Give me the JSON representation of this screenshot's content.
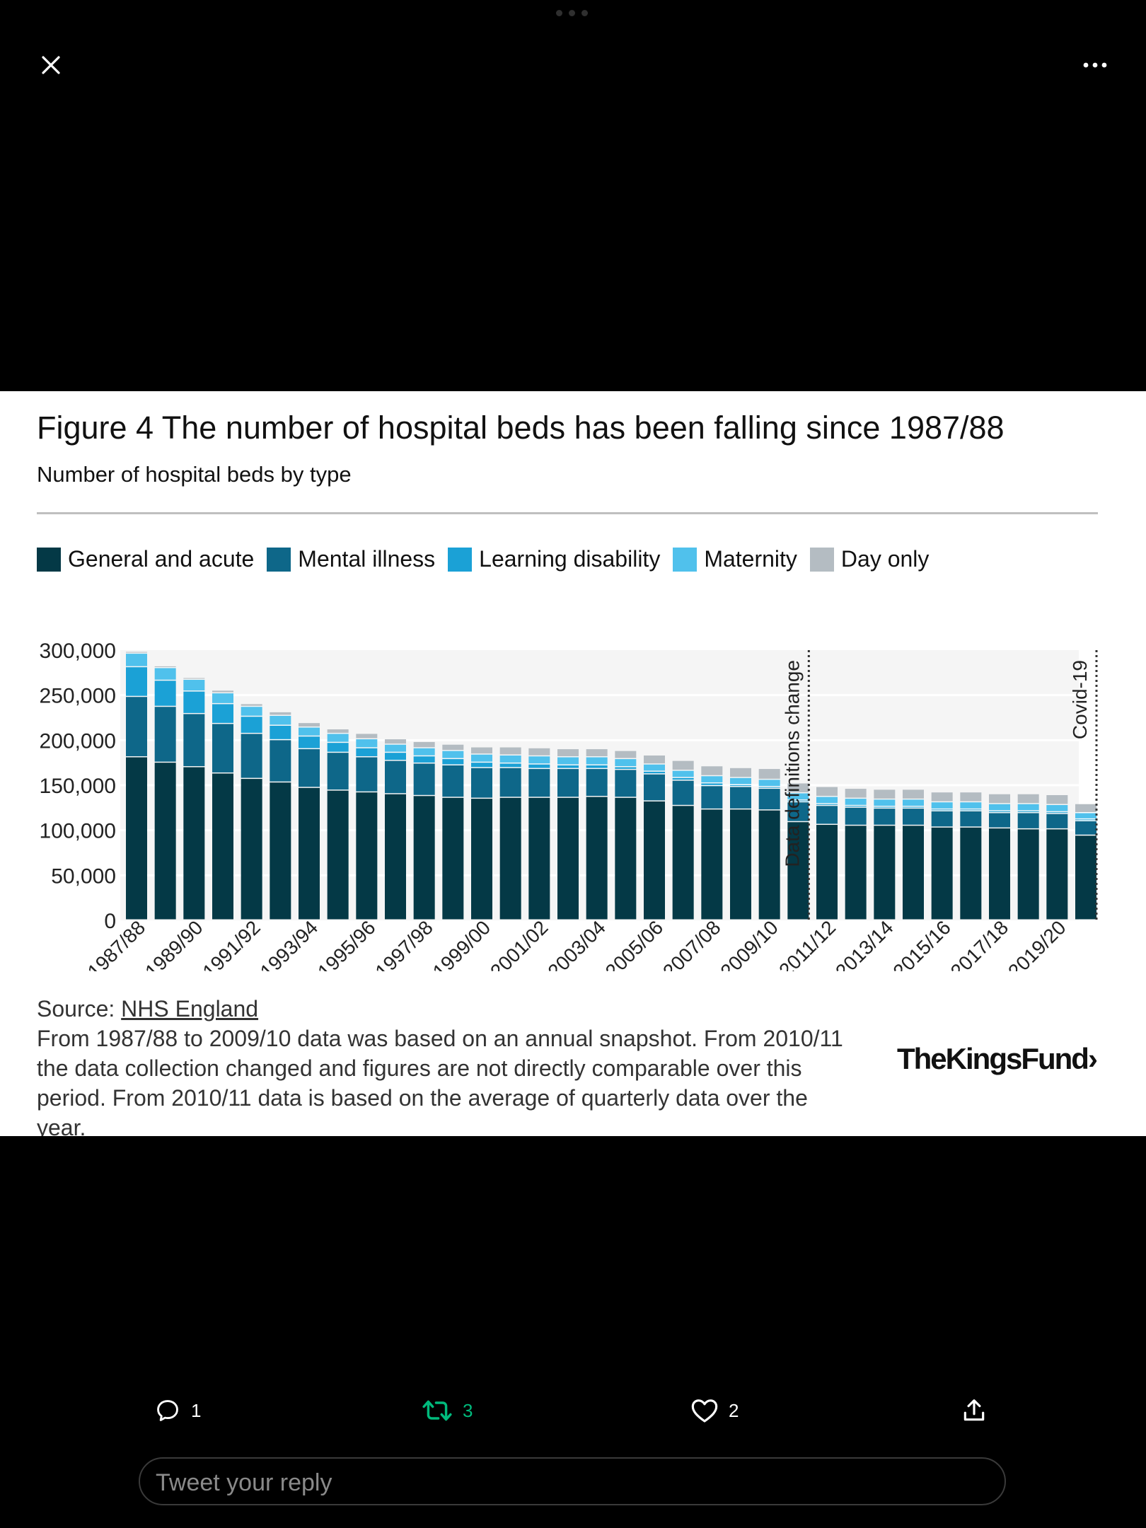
{
  "viewer": {
    "close_icon": "close-icon",
    "more_icon": "more-horizontal-icon"
  },
  "figure": {
    "title": "Figure 4 The number of hospital beds has been falling since 1987/88",
    "subtitle": "Number of hospital beds by type",
    "source_prefix": "Source: ",
    "source_link": "NHS England",
    "note": "From 1987/88 to 2009/10 data was based on an annual snapshot. From 2010/11 the data collection changed and figures are not directly comparable over this period. From 2010/11 data is based on the average of quarterly data over the year.",
    "logo": "TheKingsFund›"
  },
  "chart_data": {
    "type": "bar",
    "stacked": true,
    "categories": [
      "1987/88",
      "1988/89",
      "1989/90",
      "1990/91",
      "1991/92",
      "1992/93",
      "1993/94",
      "1994/95",
      "1995/96",
      "1996/97",
      "1997/98",
      "1998/99",
      "1999/00",
      "2000/01",
      "2001/02",
      "2002/03",
      "2003/04",
      "2004/05",
      "2005/06",
      "2006/07",
      "2007/08",
      "2008/09",
      "2009/10",
      "2010/11",
      "2011/12",
      "2012/13",
      "2013/14",
      "2014/15",
      "2015/16",
      "2016/17",
      "2017/18",
      "2018/19",
      "2019/20",
      "2020/21"
    ],
    "tick_labels": [
      "1987/88",
      "1989/90",
      "1991/92",
      "1993/94",
      "1995/96",
      "1997/98",
      "1999/00",
      "2001/02",
      "2003/04",
      "2005/06",
      "2007/08",
      "2009/10",
      "2011/12",
      "2013/14",
      "2015/16",
      "2017/18",
      "2019/20"
    ],
    "yticks": [
      "300,000",
      "250,000",
      "200,000",
      "150,000",
      "100,000",
      "50,000",
      "0"
    ],
    "ylim": [
      0,
      300000
    ],
    "grid": true,
    "legend_position": "top",
    "series": [
      {
        "name": "General and acute",
        "color": "#043946",
        "values": [
          181000,
          175000,
          170000,
          163000,
          157000,
          153000,
          147000,
          144000,
          142000,
          140000,
          138000,
          136000,
          135000,
          136000,
          136000,
          136000,
          137000,
          136000,
          132000,
          127000,
          123000,
          123000,
          122000,
          109000,
          106000,
          105000,
          105000,
          105000,
          103000,
          103000,
          102000,
          101000,
          101000,
          94000
        ]
      },
      {
        "name": "Mental illness",
        "color": "#0e6789",
        "values": [
          67000,
          62000,
          59000,
          55000,
          50000,
          47000,
          43000,
          42000,
          39000,
          37000,
          36000,
          36000,
          34000,
          33000,
          32000,
          32000,
          31000,
          31000,
          30000,
          28000,
          26000,
          25000,
          24000,
          22000,
          21000,
          20000,
          19000,
          19000,
          18000,
          18000,
          17000,
          18000,
          17000,
          16000
        ]
      },
      {
        "name": "Learning disability",
        "color": "#1ba1d6",
        "values": [
          33000,
          29000,
          25000,
          22000,
          19000,
          16000,
          14000,
          11000,
          10000,
          9000,
          8000,
          7000,
          6000,
          5000,
          5000,
          4000,
          4000,
          3000,
          3000,
          3000,
          3000,
          2000,
          2000,
          2000,
          2000,
          2000,
          2000,
          2000,
          2000,
          2000,
          2000,
          2000,
          2000,
          2000
        ]
      },
      {
        "name": "Maternity",
        "color": "#50c1ec",
        "values": [
          15000,
          14000,
          13000,
          12000,
          11000,
          11000,
          10000,
          10000,
          10000,
          9000,
          9000,
          9000,
          9000,
          9000,
          9000,
          9000,
          9000,
          9000,
          8000,
          8000,
          8000,
          8000,
          8000,
          8000,
          8000,
          8000,
          8000,
          8000,
          8000,
          8000,
          8000,
          8000,
          8000,
          7000
        ]
      },
      {
        "name": "Day only",
        "color": "#b4bcc2",
        "values": [
          2000,
          2000,
          2000,
          3000,
          3000,
          4000,
          5000,
          5000,
          6000,
          6000,
          7000,
          7000,
          8000,
          9000,
          9000,
          9000,
          9000,
          9000,
          10000,
          11000,
          11000,
          11000,
          12000,
          11000,
          11000,
          11000,
          11000,
          11000,
          11000,
          11000,
          11000,
          11000,
          11000,
          10000
        ]
      }
    ],
    "annotations": [
      {
        "label": "Data definitions change",
        "after_category": "2010/11"
      },
      {
        "label": "Covid-19",
        "after_category": "2020/21"
      }
    ]
  },
  "tweet_actions": {
    "reply_count": "1",
    "retweet_count": "3",
    "like_count": "2",
    "retweet_color": "#00ba7c",
    "reply_placeholder": "Tweet your reply"
  }
}
